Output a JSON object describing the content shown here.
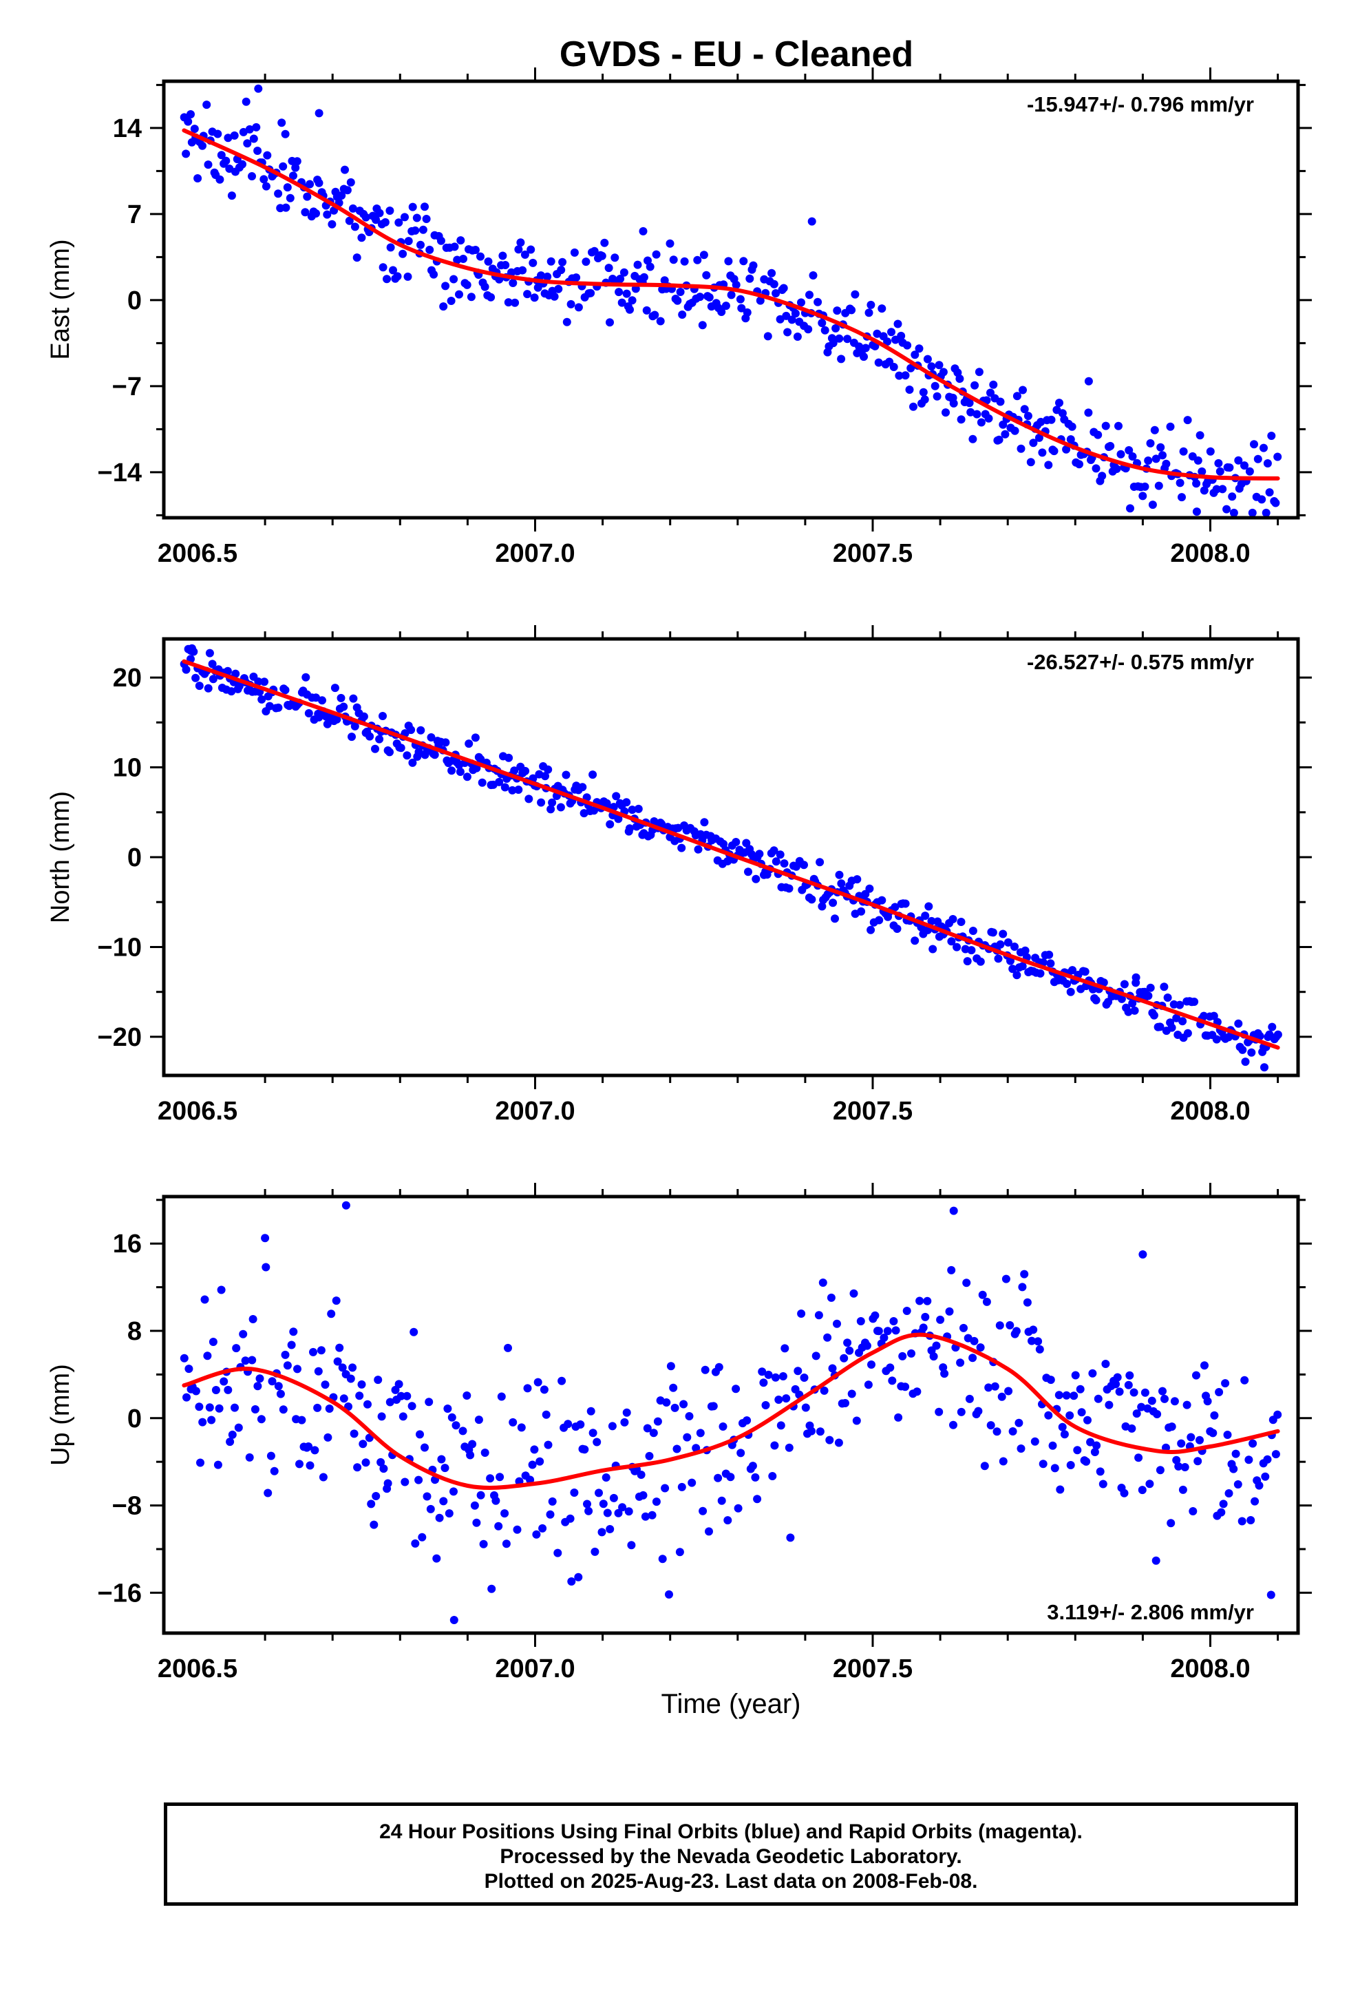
{
  "title": "GVDS  - EU - Cleaned",
  "x_axis_label": "Time (year)",
  "footer": {
    "line1": "24 Hour Positions Using Final Orbits (blue) and Rapid Orbits (magenta).",
    "line2": "Processed by the Nevada Geodetic Laboratory.",
    "line3": "Plotted on 2025-Aug-23. Last data on 2008-Feb-08."
  },
  "colors": {
    "points": "#0000ff",
    "fit": "#ff0000",
    "axis": "#000000"
  },
  "chart_data": [
    {
      "type": "scatter",
      "ylabel": "East (mm)",
      "rate_text": "-15.947+/- 0.796 mm/yr",
      "rate_position": "top-right",
      "xlim": [
        2006.45,
        2008.13
      ],
      "ylim": [
        -17.7,
        17.8
      ],
      "xticks": [
        "2006.5",
        "2007.0",
        "2007.5",
        "2008.0"
      ],
      "yticks": [
        14,
        7,
        0,
        -7,
        -14
      ],
      "yticks_text": [
        "14",
        "7",
        "0",
        "−7",
        "−14"
      ],
      "grid": false,
      "fit_curve": {
        "x": [
          2006.48,
          2006.6,
          2006.7,
          2006.8,
          2006.9,
          2007.0,
          2007.1,
          2007.2,
          2007.3,
          2007.4,
          2007.5,
          2007.6,
          2007.7,
          2007.8,
          2007.9,
          2008.0,
          2008.1
        ],
        "y": [
          13.8,
          10.8,
          7.8,
          4.5,
          2.6,
          1.6,
          1.3,
          1.2,
          0.8,
          -0.8,
          -3.2,
          -6.5,
          -9.5,
          -12.0,
          -13.7,
          -14.4,
          -14.5
        ]
      },
      "points": {
        "x_start": 2006.48,
        "x_end": 2008.1,
        "count": 550,
        "noise": 1.6,
        "outliers": [
          [
            2006.59,
            17.2
          ],
          [
            2006.63,
            13.5
          ],
          [
            2006.68,
            15.2
          ],
          [
            2007.16,
            5.6
          ],
          [
            2007.41,
            6.4
          ],
          [
            2007.82,
            -6.6
          ],
          [
            2007.98,
            -17.2
          ],
          [
            2007.62,
            -8.4
          ]
        ]
      }
    },
    {
      "type": "scatter",
      "ylabel": "North (mm)",
      "rate_text": "-26.527+/- 0.575 mm/yr",
      "rate_position": "top-right",
      "xlim": [
        2006.45,
        2008.13
      ],
      "ylim": [
        -24.3,
        24.3
      ],
      "xticks": [
        "2006.5",
        "2007.0",
        "2007.5",
        "2008.0"
      ],
      "yticks": [
        20,
        10,
        0,
        -10,
        -20
      ],
      "yticks_text": [
        "20",
        "10",
        "0",
        "−10",
        "−20"
      ],
      "grid": false,
      "fit_curve": {
        "x": [
          2006.48,
          2006.7,
          2006.9,
          2007.1,
          2007.3,
          2007.5,
          2007.7,
          2007.9,
          2008.1
        ],
        "y": [
          21.8,
          16.1,
          10.8,
          5.5,
          0.0,
          -5.3,
          -10.9,
          -16.0,
          -21.2
        ]
      },
      "points": {
        "x_start": 2006.48,
        "x_end": 2008.1,
        "count": 550,
        "noise": 1.2,
        "outliers": [
          [
            2006.49,
            23.0
          ],
          [
            2007.89,
            -13.4
          ],
          [
            2008.08,
            -23.4
          ]
        ]
      }
    },
    {
      "type": "scatter",
      "ylabel": "Up (mm)",
      "rate_text": "3.119+/- 2.806 mm/yr",
      "rate_position": "bottom-right",
      "xlim": [
        2006.45,
        2008.13
      ],
      "ylim": [
        -19.7,
        20.3
      ],
      "xticks": [
        "2006.5",
        "2007.0",
        "2007.5",
        "2008.0"
      ],
      "yticks": [
        16,
        8,
        0,
        -8,
        -16
      ],
      "yticks_text": [
        "16",
        "8",
        "0",
        "−8",
        "−16"
      ],
      "grid": false,
      "fit_curve": {
        "x": [
          2006.48,
          2006.58,
          2006.7,
          2006.8,
          2006.9,
          2007.0,
          2007.1,
          2007.2,
          2007.3,
          2007.4,
          2007.5,
          2007.58,
          2007.7,
          2007.8,
          2007.92,
          2008.0,
          2008.1
        ],
        "y": [
          3.0,
          4.5,
          1.5,
          -3.5,
          -6.2,
          -6.0,
          -4.8,
          -3.8,
          -1.8,
          2.0,
          6.0,
          7.6,
          4.5,
          -0.8,
          -3.0,
          -2.6,
          -1.2
        ]
      },
      "points": {
        "x_start": 2006.48,
        "x_end": 2008.1,
        "count": 520,
        "noise": 4.5,
        "outliers": [
          [
            2006.72,
            19.5
          ],
          [
            2006.6,
            16.5
          ],
          [
            2006.88,
            -18.5
          ],
          [
            2007.62,
            19.0
          ],
          [
            2007.9,
            15.0
          ],
          [
            2008.09,
            -16.2
          ]
        ]
      }
    }
  ]
}
